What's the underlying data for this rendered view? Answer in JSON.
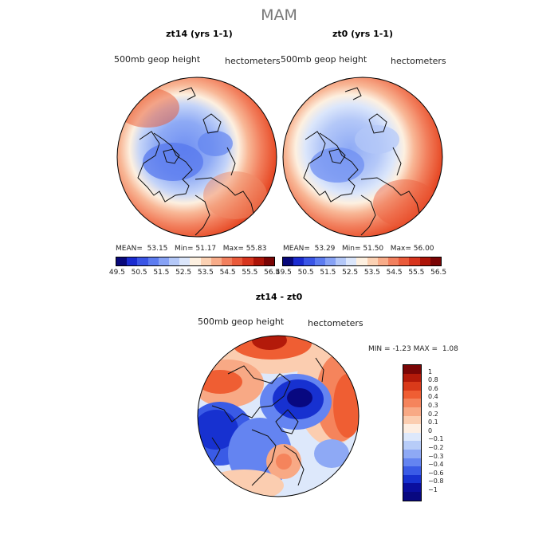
{
  "figure": {
    "title": "MAM"
  },
  "panels": [
    {
      "title": "zt14 (yrs 1-1)",
      "field_label": "500mb geop height",
      "units_label": "hectometers",
      "stats": {
        "mean_label": "MEAN=",
        "mean": "53.15",
        "min_label": "Min=",
        "min": "51.17",
        "max_label": "Max=",
        "max": "55.83"
      }
    },
    {
      "title": "zt0 (yrs 1-1)",
      "field_label": "500mb geop height",
      "units_label": "hectometers",
      "stats": {
        "mean_label": "MEAN=",
        "mean": "53.29",
        "min_label": "Min=",
        "min": "51.50",
        "max_label": "Max=",
        "max": "56.00"
      }
    }
  ],
  "colorbar_levels": [
    "49.5",
    "50.5",
    "51.5",
    "52.5",
    "53.5",
    "54.5",
    "55.5",
    "56.5"
  ],
  "colorbar_colors": [
    "#08087a",
    "#1a2bd0",
    "#3a55e6",
    "#5d7cf0",
    "#87a2f5",
    "#b4c8f8",
    "#dbe6fb",
    "#fdf0e0",
    "#fbd1b3",
    "#f8ac89",
    "#f2805e",
    "#ea5a3a",
    "#d7341d",
    "#ad1408",
    "#7a0404"
  ],
  "diff_panel": {
    "title": "zt14 - zt0",
    "field_label": "500mb geop height",
    "units_label": "hectometers",
    "stats": {
      "min_label": "MIN =",
      "min": "-1.23",
      "max_label": "MAX =",
      "max": "1.08"
    },
    "levels": [
      "1",
      "0.8",
      "0.6",
      "0.4",
      "0.3",
      "0.2",
      "0.1",
      "0",
      "−0.1",
      "−0.2",
      "−0.3",
      "−0.4",
      "−0.6",
      "−0.8",
      "−1"
    ],
    "colors": [
      "#7a0606",
      "#b31a0a",
      "#d93a1a",
      "#ef5e33",
      "#f5845c",
      "#f8a985",
      "#fbcdb0",
      "#fdeee2",
      "#dde8fb",
      "#b7ccf8",
      "#8ea9f5",
      "#6484f1",
      "#3a5be6",
      "#1731d0",
      "#0a0e9e",
      "#080880"
    ]
  }
}
